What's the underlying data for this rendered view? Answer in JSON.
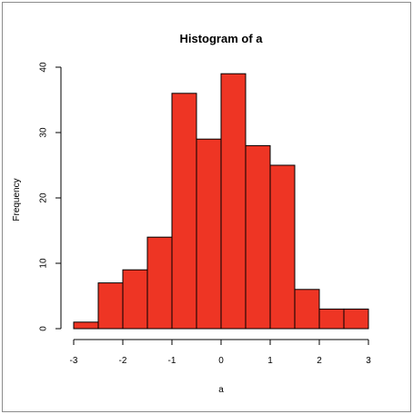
{
  "chart_data": {
    "type": "bar",
    "title": "Histogram of a",
    "xlabel": "a",
    "ylabel": "Frequency",
    "bin_edges": [
      -3,
      -2.5,
      -2,
      -1.5,
      -1,
      -0.5,
      0,
      0.5,
      1,
      1.5,
      2,
      2.5,
      3
    ],
    "values": [
      1,
      7,
      9,
      14,
      36,
      29,
      39,
      28,
      25,
      6,
      3,
      3
    ],
    "xlim": [
      -3,
      3
    ],
    "ylim": [
      0,
      40
    ],
    "x_ticks": [
      -3,
      -2,
      -1,
      0,
      1,
      2,
      3
    ],
    "x_tick_labels": [
      "-3",
      "-2",
      "-1",
      "0",
      "1",
      "2",
      "3"
    ],
    "y_ticks": [
      0,
      10,
      20,
      30,
      40
    ],
    "y_tick_labels": [
      "0",
      "10",
      "20",
      "30",
      "40"
    ],
    "bar_color": "#ee3524",
    "grid": false
  }
}
